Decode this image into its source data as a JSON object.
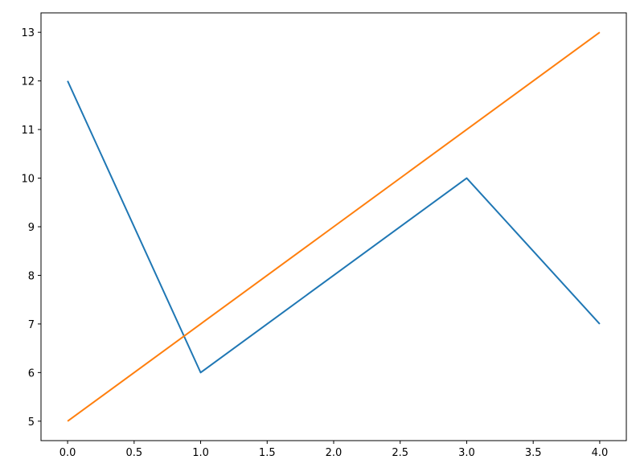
{
  "chart_data": {
    "type": "line",
    "title": "",
    "xlabel": "",
    "ylabel": "",
    "xlim": [
      -0.2,
      4.2
    ],
    "ylim": [
      4.6,
      13.4
    ],
    "xticks": [
      "0.0",
      "0.5",
      "1.0",
      "1.5",
      "2.0",
      "2.5",
      "3.0",
      "3.5",
      "4.0"
    ],
    "yticks": [
      "5",
      "6",
      "7",
      "8",
      "9",
      "10",
      "11",
      "12",
      "13"
    ],
    "grid": false,
    "legend": "none",
    "x": [
      0,
      1,
      2,
      3,
      4
    ],
    "series": [
      {
        "values": [
          12,
          6,
          8,
          10,
          7
        ],
        "color": "#1f77b4"
      },
      {
        "values": [
          5,
          7,
          9,
          11,
          13
        ],
        "color": "#ff7f0e"
      }
    ]
  }
}
